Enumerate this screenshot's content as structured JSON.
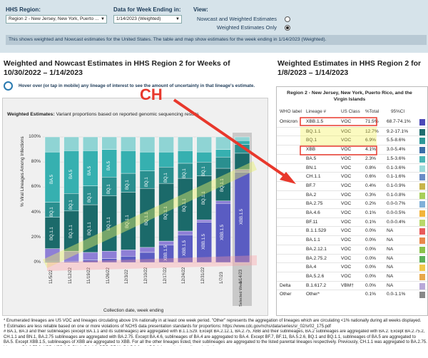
{
  "filters": {
    "region_label": "HHS Region:",
    "region_value": "Region 2 - New Jersey, New York, Puerto ...",
    "date_label": "Data for Week Ending in:",
    "date_value": "1/14/2023 (Weighted)",
    "view_label": "View:",
    "view_options": [
      "Nowcast and Weighted Estimates",
      "Weighted Estimates Only"
    ],
    "view_selected": 1
  },
  "info_text": "This shows weighted and Nowcast estimates for the United States. The table and map show estimates for the week ending in 1/14/2023 (Weighted).",
  "left_title": "Weighted and Nowcast Estimates in HHS Region 2 for Weeks of 10/30/2022 – 1/14/2023",
  "hover_text": "Hover over (or tap in mobile) any lineage of interest to see the amount of uncertainty in that lineage's estimate.",
  "chart_title_bold": "Weighted Estimates:",
  "chart_title_rest": " Variant proportions based on reported genomic sequencing results",
  "annotation": "CH",
  "chart_data": {
    "type": "bar",
    "stacked": true,
    "xlabel": "Collection date, week ending",
    "ylabel": "% Viral Lineages Among Infections",
    "ylim": [
      0,
      100
    ],
    "y_ticks": [
      "100%",
      "80%",
      "60%",
      "40%",
      "20%",
      "0%"
    ],
    "categories": [
      "11/5/22",
      "11/12/22",
      "11/19/22",
      "11/26/22",
      "12/3/22",
      "12/10/22",
      "12/17/22",
      "12/24/22",
      "12/31/22",
      "1/7/23",
      "1/14/23"
    ],
    "last_column_label": "Selected Week",
    "series": [
      {
        "name": "XBB.1.5",
        "color": "#5a5cc2",
        "values": [
          1,
          1,
          2,
          3,
          5,
          8,
          14,
          22,
          32,
          47,
          72
        ]
      },
      {
        "name": "Other",
        "color": "#8e7fd6",
        "values": [
          10,
          8,
          6,
          6,
          5,
          4,
          3,
          3,
          2,
          2,
          2
        ]
      },
      {
        "name": "BQ.1.1",
        "color": "#1b6a6a",
        "values": [
          25,
          32,
          38,
          44,
          46,
          47,
          46,
          42,
          35,
          26,
          13
        ]
      },
      {
        "name": "BQ.1",
        "color": "#2a8f8f",
        "values": [
          12,
          14,
          15,
          15,
          15,
          14,
          13,
          12,
          11,
          9,
          7
        ]
      },
      {
        "name": "BA.5",
        "color": "#36b0b0",
        "values": [
          40,
          34,
          28,
          22,
          18,
          15,
          12,
          10,
          8,
          6,
          3
        ]
      },
      {
        "name": "BA.2.75",
        "color": "#8fd4d4",
        "values": [
          12,
          11,
          11,
          10,
          11,
          12,
          12,
          11,
          12,
          10,
          3
        ]
      }
    ],
    "bar_labels": {
      "BA.5": [
        "BA.5",
        "BA.5",
        "BA.5",
        "BA.5",
        "",
        "",
        "",
        "",
        "",
        "",
        ""
      ],
      "BQ.1.1": [
        "BQ.1.1",
        "BQ.1.1",
        "BQ.1.1",
        "BQ.1.1",
        "BQ.1.1",
        "BQ.1.1",
        "BQ.1.1",
        "BQ.1.1",
        "BQ.1.1",
        "BQ.1.1",
        ""
      ],
      "BQ.1": [
        "BQ.1",
        "BQ.1",
        "BQ.1",
        "BQ.1",
        "BQ.1",
        "BQ.1",
        "BQ.1",
        "BQ.1",
        "BQ.1",
        "",
        ""
      ],
      "XBB.1.5": [
        "",
        "",
        "",
        "",
        "",
        "",
        "XBB.1.5",
        "XBB.1.5",
        "XBB.1.5",
        "XBB.1.5",
        "XBB.1.5"
      ]
    }
  },
  "right_title": "Weighted Estimates in HHS Region 2 for 1/8/2023 – 1/14/2023",
  "table": {
    "heading": "Region 2 - New Jersey, New York, Puerto Rico, and the Virgin Islands",
    "columns": [
      "WHO label",
      "Lineage #",
      "US Class",
      "%Total",
      "95%CI"
    ],
    "rows": [
      {
        "who": "Omicron",
        "lineage": "XBB.1.5",
        "cls": "VOC",
        "pct": "71.5%",
        "ci": "68.7-74.1%",
        "color": "#4b49b8"
      },
      {
        "who": "",
        "lineage": "BQ.1.1",
        "cls": "VOC",
        "pct": "12.7%",
        "ci": "9.2-17.1%",
        "color": "#1e6d6f"
      },
      {
        "who": "",
        "lineage": "BQ.1",
        "cls": "VOC",
        "pct": "6.9%",
        "ci": "5.5-8.6%",
        "color": "#2d9898"
      },
      {
        "who": "",
        "lineage": "XBB",
        "cls": "VOC",
        "pct": "4.1%",
        "ci": "3.0-5.4%",
        "color": "#3a6ea8"
      },
      {
        "who": "",
        "lineage": "BA.5",
        "cls": "VOC",
        "pct": "2.3%",
        "ci": "1.5-3.6%",
        "color": "#4ab5b5"
      },
      {
        "who": "",
        "lineage": "BN.1",
        "cls": "VOC",
        "pct": "0.8%",
        "ci": "0.1-3.6%",
        "color": "#9adada"
      },
      {
        "who": "",
        "lineage": "CH.1.1",
        "cls": "VOC",
        "pct": "0.6%",
        "ci": "0.1-1.6%",
        "color": "#6a8cc7"
      },
      {
        "who": "",
        "lineage": "BF.7",
        "cls": "VOC",
        "pct": "0.4%",
        "ci": "0.1-0.9%",
        "color": "#c7b54a"
      },
      {
        "who": "",
        "lineage": "BA.2",
        "cls": "VOC",
        "pct": "0.3%",
        "ci": "0.1-0.8%",
        "color": "#a7cf5a"
      },
      {
        "who": "",
        "lineage": "BA.2.75",
        "cls": "VOC",
        "pct": "0.2%",
        "ci": "0.0-0.7%",
        "color": "#7fb0d8"
      },
      {
        "who": "",
        "lineage": "BA.4.6",
        "cls": "VOC",
        "pct": "0.1%",
        "ci": "0.0-0.5%",
        "color": "#f2b43a"
      },
      {
        "who": "",
        "lineage": "BF.11",
        "cls": "VOC",
        "pct": "0.1%",
        "ci": "0.0-0.4%",
        "color": "#b8d86a"
      },
      {
        "who": "",
        "lineage": "B.1.1.529",
        "cls": "VOC",
        "pct": "0.0%",
        "ci": "NA",
        "color": "#e85a5a"
      },
      {
        "who": "",
        "lineage": "BA.1.1",
        "cls": "VOC",
        "pct": "0.0%",
        "ci": "NA",
        "color": "#e8884a"
      },
      {
        "who": "",
        "lineage": "BA.2.12.1",
        "cls": "VOC",
        "pct": "0.0%",
        "ci": "NA",
        "color": "#8ac24a"
      },
      {
        "who": "",
        "lineage": "BA.2.75.2",
        "cls": "VOC",
        "pct": "0.0%",
        "ci": "NA",
        "color": "#5ab05a"
      },
      {
        "who": "",
        "lineage": "BA.4",
        "cls": "VOC",
        "pct": "0.0%",
        "ci": "NA",
        "color": "#f0c84a"
      },
      {
        "who": "",
        "lineage": "BA.5.2.6",
        "cls": "VOC",
        "pct": "0.0%",
        "ci": "NA",
        "color": "#e8a84a"
      },
      {
        "who": "Delta",
        "lineage": "B.1.617.2",
        "cls": "VBM",
        "pct": "0.0%",
        "ci": "NA",
        "color": "#b8a8d8"
      },
      {
        "who": "Other",
        "lineage": "Other*",
        "cls": "",
        "pct": "0.1%",
        "ci": "0.0-1.1%",
        "color": "#888888"
      }
    ],
    "row_marks": [
      "",
      "",
      "",
      "",
      "",
      "",
      "",
      "",
      "",
      "",
      "",
      "",
      "",
      "",
      "",
      "",
      "",
      "",
      "†",
      ""
    ]
  },
  "footnotes": [
    "* Enumerated lineages are US VOC and lineages circulating above 1% nationally in at least one week period. \"Other\" represents the aggregation of lineages which are circulating <1% nationally during all weeks displayed.",
    "† Estimates are less reliable based on one or more violations of NCHS data presentation standards for proportions: https://www.cdc.gov/nchs/data/series/sr_02/sr02_175.pdf",
    "# BA.1, BA.3 and their sublineages (except BA.1.1 and its sublineages) are aggregated with B.1.1.529. Except BA.2.12.1, BA.2.75, XBB and their sublineages, BA.2 sublineages are aggregated with BA.2. Except BA.2.75.2, CH.1.1 and BN.1, BA.2.75 sublineages are aggregated with BA.2.75. Except BA.4.6, sublineages of BA.4 are aggregated to BA.4. Except BF.7, BF.11, BA.5.2.6, BQ.1 and BQ.1.1, sublineages of BA.5 are aggregated to BA.5. Except XBB.1.5, sublineages of XBB are aggregated to XBB. For all the other lineages listed, their sublineages are aggregated to the listed parental lineages respectively. Previously, CH.1.1 was aggregated to BA.2.75. Lineages BA.2.75.2, XBB, XBB.1.5, BN.1, BA.4.6, BF.7, BF.11, BA.5.2.6 and BQ.1.1 contain the spike substitution"
  ]
}
